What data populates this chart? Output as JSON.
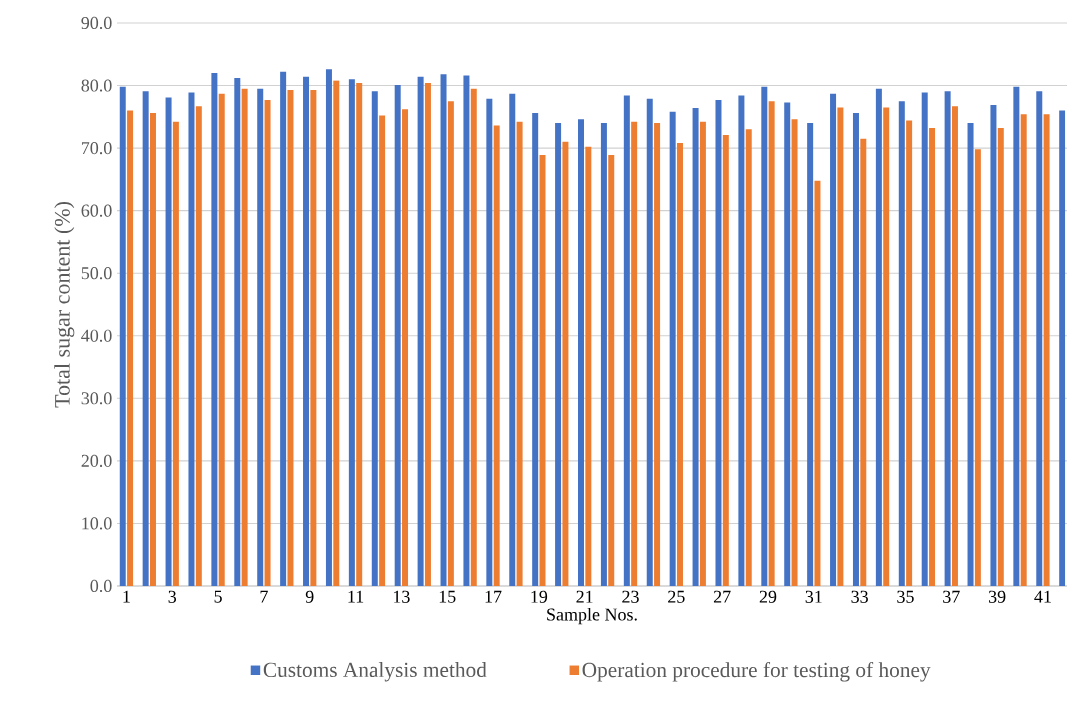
{
  "chart_data": {
    "type": "bar",
    "xlabel": "Sample Nos.",
    "ylabel": "Total sugar content (%)",
    "categories": [
      "1",
      null,
      "3",
      null,
      "5",
      null,
      "7",
      null,
      "9",
      null,
      "11",
      null,
      "13",
      null,
      "15",
      null,
      "17",
      null,
      "19",
      null,
      "21",
      null,
      "23",
      null,
      "25",
      null,
      "27",
      null,
      "29",
      null,
      "31",
      null,
      "33",
      null,
      "35",
      null,
      "37",
      null,
      "39",
      null,
      "41",
      null
    ],
    "series": [
      {
        "name": "Customs Analysis method",
        "color": "#4472c4",
        "values": [
          79.8,
          79.1,
          78.1,
          78.9,
          82.0,
          81.2,
          79.5,
          82.2,
          81.4,
          82.6,
          81.0,
          79.1,
          80.1,
          81.4,
          81.8,
          81.6,
          77.9,
          78.7,
          75.6,
          74.0,
          74.6,
          74.0,
          78.4,
          77.9,
          75.8,
          76.4,
          77.7,
          78.4,
          79.8,
          77.3,
          74.0,
          78.7,
          75.6,
          79.5,
          77.5,
          78.9,
          79.1,
          74.0,
          76.9,
          79.8,
          79.1,
          76.0
        ]
      },
      {
        "name": "Operation procedure for testing of honey",
        "color": "#ed7d31",
        "values": [
          76.0,
          75.6,
          74.2,
          76.7,
          78.7,
          79.5,
          77.7,
          79.3,
          79.3,
          80.8,
          80.4,
          75.2,
          76.2,
          80.4,
          77.5,
          79.5,
          73.6,
          74.2,
          68.9,
          71.0,
          70.2,
          68.9,
          74.2,
          74.0,
          70.8,
          74.2,
          72.1,
          73.0,
          77.5,
          74.6,
          64.8,
          76.5,
          71.5,
          76.5,
          74.4,
          73.2,
          76.7,
          69.8,
          73.2,
          75.4,
          75.4,
          null
        ]
      }
    ],
    "ylim": [
      0,
      90
    ],
    "yticks": [
      {
        "value": 0,
        "label": "0.0"
      },
      {
        "value": 10,
        "label": "10.0"
      },
      {
        "value": 20,
        "label": "20.0"
      },
      {
        "value": 30,
        "label": "30.0"
      },
      {
        "value": 40,
        "label": "40.0"
      },
      {
        "value": 50,
        "label": "50.0"
      },
      {
        "value": 60,
        "label": "60.0"
      },
      {
        "value": 70,
        "label": "70.0"
      },
      {
        "value": 80,
        "label": "80.0"
      },
      {
        "value": 90,
        "label": "90.0"
      }
    ],
    "grid": "y",
    "legend": "bottom"
  }
}
